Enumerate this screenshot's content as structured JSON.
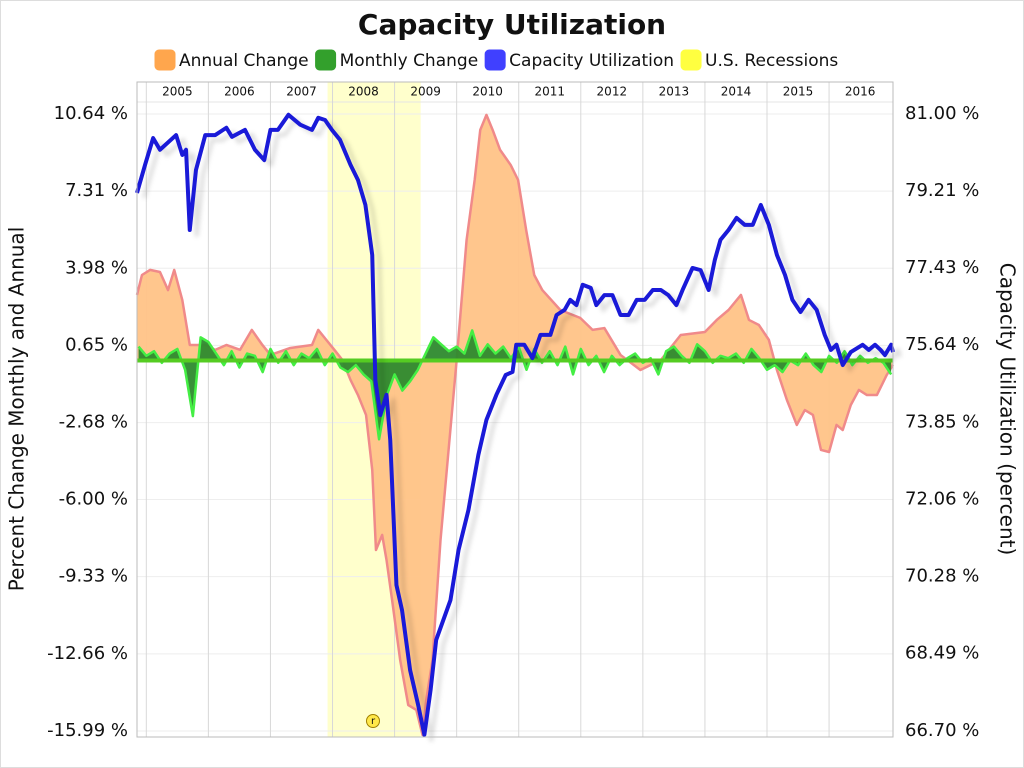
{
  "chart_data": {
    "type": "area",
    "title": "Capacity Utilization",
    "y_label": "Percent Change Monthly and Annual",
    "y2_label": "Capacity Utilization (percent)",
    "annotation": "r",
    "xlim": [
      2004.85,
      2017.03
    ],
    "xticks": [
      2005,
      2006,
      2007,
      2008,
      2009,
      2010,
      2011,
      2012,
      2013,
      2014,
      2015,
      2016
    ],
    "ylim": [
      -16.25,
      12.02
    ],
    "yticks": [
      {
        "value": 10.64,
        "label": "10.64 %"
      },
      {
        "value": 7.31,
        "label": "7.31 %"
      },
      {
        "value": 3.98,
        "label": "3.98 %"
      },
      {
        "value": 0.65,
        "label": "0.65 %"
      },
      {
        "value": -2.68,
        "label": "-2.68 %"
      },
      {
        "value": -6.0,
        "label": "-6.00 %"
      },
      {
        "value": -9.33,
        "label": "-9.33 %"
      },
      {
        "value": -12.66,
        "label": "-12.66 %"
      },
      {
        "value": -15.99,
        "label": "-15.99 %"
      }
    ],
    "y2lim": [
      66.56,
      81.74
    ],
    "y2ticks": [
      {
        "value": 81.0,
        "label": "81.00 %"
      },
      {
        "value": 79.21,
        "label": "79.21 %"
      },
      {
        "value": 77.43,
        "label": "77.43 %"
      },
      {
        "value": 75.64,
        "label": "75.64 %"
      },
      {
        "value": 73.85,
        "label": "73.85 %"
      },
      {
        "value": 72.06,
        "label": "72.06 %"
      },
      {
        "value": 70.28,
        "label": "70.28 %"
      },
      {
        "value": 68.49,
        "label": "68.49 %"
      },
      {
        "value": 66.7,
        "label": "66.70 %"
      }
    ],
    "grid": true,
    "series": [
      {
        "name": "Annual Change",
        "type": "area",
        "axis": "y",
        "color": "#ffa64d",
        "fill": "#ffc387",
        "stroke": "#f08a8a",
        "x": [
          2004.85,
          2004.93,
          2005.06,
          2005.22,
          2005.35,
          2005.45,
          2005.58,
          2005.7,
          2005.95,
          2006.11,
          2006.29,
          2006.51,
          2006.7,
          2006.87,
          2007.0,
          2007.32,
          2007.67,
          2007.77,
          2007.9,
          2008.03,
          2008.16,
          2008.29,
          2008.41,
          2008.54,
          2008.64,
          2008.7,
          2008.8,
          2008.87,
          2008.96,
          2009.09,
          2009.22,
          2009.35,
          2009.45,
          2009.51,
          2009.61,
          2009.74,
          2009.87,
          2010.0,
          2010.16,
          2010.29,
          2010.38,
          2010.48,
          2010.58,
          2010.7,
          2010.87,
          2010.99,
          2011.12,
          2011.25,
          2011.38,
          2011.67,
          2011.99,
          2012.19,
          2012.38,
          2012.64,
          2012.96,
          2013.29,
          2013.61,
          2014.0,
          2014.19,
          2014.38,
          2014.58,
          2014.71,
          2014.87,
          2015.03,
          2015.16,
          2015.32,
          2015.48,
          2015.61,
          2015.74,
          2015.87,
          2016.0,
          2016.12,
          2016.22,
          2016.35,
          2016.48,
          2016.61,
          2016.77,
          2016.93,
          2017.03
        ],
        "values": [
          2.83,
          3.69,
          3.91,
          3.82,
          3.04,
          3.91,
          2.61,
          0.67,
          0.67,
          0.46,
          0.67,
          0.46,
          1.32,
          0.67,
          0.24,
          0.54,
          0.67,
          1.32,
          0.89,
          0.46,
          0.02,
          -0.84,
          -1.49,
          -2.35,
          -4.72,
          -8.18,
          -7.53,
          -8.61,
          -10.34,
          -12.93,
          -14.87,
          -15.08,
          -16.16,
          -14.65,
          -12.93,
          -7.75,
          -3.86,
          0.02,
          5.2,
          7.79,
          9.95,
          10.6,
          9.95,
          9.09,
          8.44,
          7.79,
          5.63,
          3.69,
          3.04,
          2.18,
          1.84,
          1.32,
          1.4,
          0.24,
          -0.41,
          0.02,
          1.1,
          1.23,
          1.75,
          2.18,
          2.83,
          1.75,
          1.53,
          0.89,
          -0.41,
          -1.7,
          -2.78,
          -2.14,
          -2.35,
          -3.86,
          -3.95,
          -2.78,
          -3.0,
          -1.92,
          -1.27,
          -1.49,
          -1.49,
          -0.62,
          -0.19
        ]
      },
      {
        "name": "Monthly Change",
        "type": "area",
        "axis": "y",
        "color": "#33a02c",
        "fill": "#2e8a2e",
        "stroke": "#44ee44",
        "x": [
          2004.875,
          2005,
          2005.125,
          2005.25,
          2005.375,
          2005.5,
          2005.625,
          2005.75,
          2005.875,
          2006,
          2006.125,
          2006.25,
          2006.375,
          2006.5,
          2006.625,
          2006.75,
          2006.875,
          2007,
          2007.125,
          2007.25,
          2007.375,
          2007.5,
          2007.625,
          2007.75,
          2007.875,
          2008,
          2008.125,
          2008.25,
          2008.375,
          2008.5,
          2008.625,
          2008.75,
          2008.875,
          2009,
          2009.125,
          2009.25,
          2009.375,
          2009.5,
          2009.625,
          2009.75,
          2009.875,
          2010,
          2010.125,
          2010.25,
          2010.375,
          2010.5,
          2010.625,
          2010.75,
          2010.875,
          2011,
          2011.125,
          2011.25,
          2011.375,
          2011.5,
          2011.625,
          2011.75,
          2011.875,
          2012,
          2012.125,
          2012.25,
          2012.375,
          2012.5,
          2012.625,
          2012.75,
          2012.875,
          2013,
          2013.125,
          2013.25,
          2013.375,
          2013.5,
          2013.625,
          2013.75,
          2013.875,
          2014,
          2014.125,
          2014.25,
          2014.375,
          2014.5,
          2014.625,
          2014.75,
          2014.875,
          2015,
          2015.125,
          2015.25,
          2015.375,
          2015.5,
          2015.625,
          2015.75,
          2015.875,
          2016,
          2016.125,
          2016.25,
          2016.375,
          2016.5,
          2016.625,
          2016.75,
          2016.875,
          2017
        ],
        "values": [
          0.6,
          0.2,
          0.4,
          -0.1,
          0.3,
          0.5,
          -0.4,
          -2.4,
          1.0,
          0.8,
          0.3,
          -0.2,
          0.4,
          -0.3,
          0.3,
          0.2,
          -0.5,
          0.5,
          -0.1,
          0.4,
          -0.2,
          0.3,
          0.1,
          0.5,
          -0.2,
          0.3,
          -0.3,
          -0.5,
          -0.2,
          -0.6,
          -0.9,
          -3.4,
          -1.5,
          -0.6,
          -1.3,
          -0.9,
          -0.4,
          0.3,
          1.0,
          0.7,
          0.4,
          0.6,
          0.3,
          1.3,
          0.2,
          0.7,
          0.3,
          0.6,
          0.1,
          0.6,
          -0.4,
          0.5,
          -0.1,
          0.4,
          -0.2,
          0.6,
          -0.6,
          0.5,
          -0.2,
          0.2,
          -0.5,
          0.2,
          -0.2,
          0.1,
          0.3,
          -0.1,
          0.1,
          -0.6,
          0.4,
          0.6,
          0.2,
          -0.1,
          0.7,
          0.4,
          -0.1,
          0.2,
          0.1,
          0.3,
          -0.1,
          0.5,
          0.1,
          -0.4,
          -0.2,
          -0.5,
          0.0,
          -0.2,
          0.3,
          -0.2,
          -0.5,
          0.2,
          -0.1,
          0.4,
          -0.2,
          0.2,
          -0.1,
          0.1,
          -0.1,
          -0.6
        ]
      },
      {
        "name": "Capacity Utilization",
        "type": "line",
        "axis": "y2",
        "color": "#4040ff",
        "stroke": "#1a1ad8",
        "x": [
          2004.85,
          2004.98,
          2005.11,
          2005.22,
          2005.48,
          2005.58,
          2005.64,
          2005.7,
          2005.8,
          2005.95,
          2006.11,
          2006.29,
          2006.38,
          2006.59,
          2006.75,
          2006.9,
          2007.0,
          2007.12,
          2007.29,
          2007.48,
          2007.67,
          2007.77,
          2007.88,
          2007.99,
          2008.12,
          2008.29,
          2008.41,
          2008.53,
          2008.64,
          2008.69,
          2008.77,
          2008.87,
          2008.93,
          2009.03,
          2009.12,
          2009.25,
          2009.38,
          2009.48,
          2009.58,
          2009.67,
          2009.9,
          2010.03,
          2010.19,
          2010.35,
          2010.48,
          2010.64,
          2010.79,
          2010.9,
          2010.96,
          2011.09,
          2011.22,
          2011.35,
          2011.51,
          2011.61,
          2011.74,
          2011.83,
          2011.93,
          2012.03,
          2012.16,
          2012.25,
          2012.38,
          2012.51,
          2012.64,
          2012.77,
          2012.9,
          2013.03,
          2013.16,
          2013.29,
          2013.41,
          2013.54,
          2013.64,
          2013.8,
          2013.93,
          2014.06,
          2014.16,
          2014.25,
          2014.38,
          2014.51,
          2014.64,
          2014.77,
          2014.9,
          2015.03,
          2015.16,
          2015.29,
          2015.41,
          2015.54,
          2015.67,
          2015.8,
          2015.93,
          2016.03,
          2016.12,
          2016.22,
          2016.35,
          2016.54,
          2016.64,
          2016.74,
          2016.83,
          2016.9,
          2017.0,
          2017.03
        ],
        "values": [
          79.17,
          79.82,
          80.44,
          80.17,
          80.51,
          80.05,
          80.17,
          78.31,
          79.7,
          80.51,
          80.51,
          80.68,
          80.47,
          80.63,
          80.17,
          79.93,
          80.63,
          80.63,
          80.98,
          80.75,
          80.63,
          80.91,
          80.86,
          80.63,
          80.4,
          79.82,
          79.47,
          78.89,
          77.73,
          74.83,
          74.02,
          74.49,
          73.44,
          70.08,
          69.5,
          68.11,
          67.3,
          66.61,
          67.65,
          68.81,
          69.73,
          70.89,
          71.82,
          73.1,
          73.91,
          74.49,
          74.95,
          75.02,
          75.65,
          75.65,
          75.34,
          75.88,
          75.88,
          76.34,
          76.46,
          76.69,
          76.57,
          77.04,
          76.97,
          76.57,
          76.8,
          76.8,
          76.34,
          76.34,
          76.69,
          76.69,
          76.92,
          76.92,
          76.8,
          76.57,
          76.92,
          77.43,
          77.38,
          76.92,
          77.62,
          78.08,
          78.31,
          78.59,
          78.43,
          78.43,
          78.89,
          78.43,
          77.73,
          77.27,
          76.69,
          76.41,
          76.69,
          76.46,
          75.88,
          75.53,
          75.65,
          75.18,
          75.48,
          75.65,
          75.53,
          75.65,
          75.53,
          75.41,
          75.65,
          75.48
        ]
      },
      {
        "name": "U.S. Recessions",
        "type": "band",
        "color": "#ffff40",
        "fill": "#ffffcc",
        "ranges": [
          [
            2007.92,
            2009.42
          ]
        ]
      }
    ]
  }
}
